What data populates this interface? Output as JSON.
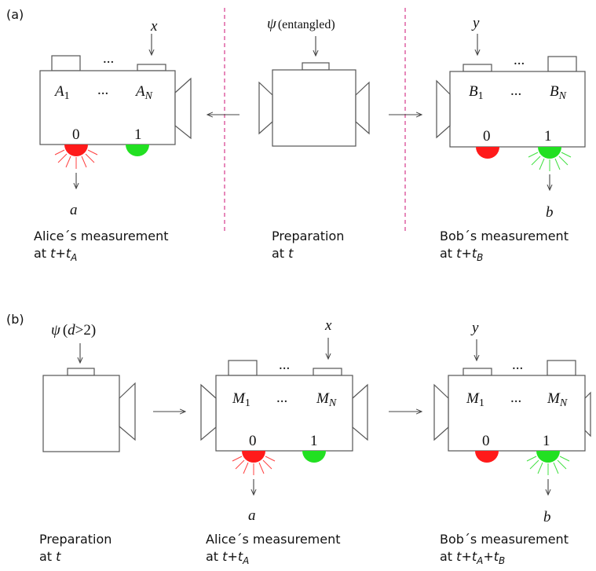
{
  "panel_a": {
    "label": "(a)",
    "alice": {
      "setting_input": "x",
      "settings": [
        "A",
        "1",
        "A",
        "N"
      ],
      "ellipsis": "...",
      "outcome_labels": [
        "0",
        "1"
      ],
      "output": "a",
      "caption_line1": "Alice´s measurement",
      "caption_line2_prefix": "at ",
      "caption_time": [
        "t",
        "+",
        "t",
        "A"
      ]
    },
    "source": {
      "input_symbol": "ψ",
      "input_text": "(entangled)",
      "caption_line1": "Preparation",
      "caption_line2_prefix": "at ",
      "caption_time": "t"
    },
    "bob": {
      "setting_input": "y",
      "settings": [
        "B",
        "1",
        "B",
        "N"
      ],
      "ellipsis": "...",
      "outcome_labels": [
        "0",
        "1"
      ],
      "output": "b",
      "caption_line1": "Bob´s measurement",
      "caption_line2_prefix": "at ",
      "caption_time": [
        "t",
        "+",
        "t",
        "B"
      ]
    },
    "colors": {
      "red_led": "#ff1a1a",
      "green_led": "#22e022",
      "divider": "#e06aa8"
    }
  },
  "panel_b": {
    "label": "(b)",
    "source": {
      "input_symbol": "ψ",
      "input_text": [
        "(",
        "d",
        ">2)"
      ],
      "caption_line1": "Preparation",
      "caption_line2_prefix": "at ",
      "caption_time": "t"
    },
    "alice": {
      "setting_input": "x",
      "settings": [
        "M",
        "1",
        "M",
        "N"
      ],
      "ellipsis": "...",
      "outcome_labels": [
        "0",
        "1"
      ],
      "output": "a",
      "caption_line1": "Alice´s measurement",
      "caption_line2_prefix": "at ",
      "caption_time": [
        "t",
        "+",
        "t",
        "A"
      ]
    },
    "bob": {
      "setting_input": "y",
      "settings": [
        "M",
        "1",
        "M",
        "N"
      ],
      "ellipsis": "...",
      "outcome_labels": [
        "0",
        "1"
      ],
      "output": "b",
      "caption_line1": "Bob´s measurement",
      "caption_line2_prefix": "at ",
      "caption_time": [
        "t",
        "+",
        "t",
        "A",
        "+",
        "t",
        "B"
      ]
    }
  }
}
